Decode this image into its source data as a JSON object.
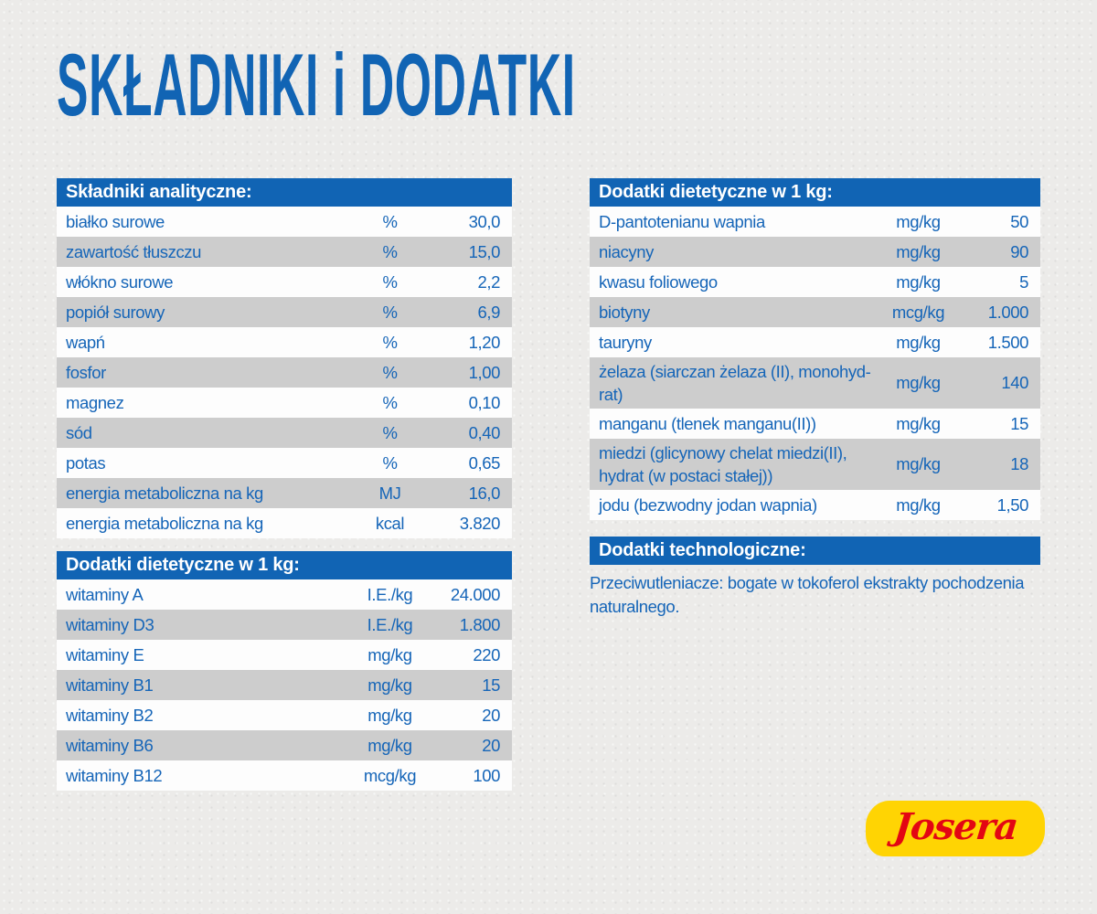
{
  "page": {
    "title": "SKŁADNIKI i DODATKI"
  },
  "colors": {
    "accent_blue": "#1164b4",
    "text_blue": "#1565b8",
    "row_light": "#fdfdfd",
    "row_gray": "#cdcdcd",
    "background": "#ecebe9",
    "header_text": "#ffffff",
    "logo_yellow": "#ffd403",
    "logo_red": "#e30613"
  },
  "tables": {
    "analytical": {
      "header": "Składniki analityczne:",
      "rows": [
        {
          "label": "białko surowe",
          "unit": "%",
          "value": "30,0"
        },
        {
          "label": "zawartość tłuszczu",
          "unit": "%",
          "value": "15,0"
        },
        {
          "label": "włókno surowe",
          "unit": "%",
          "value": "2,2"
        },
        {
          "label": "popiół surowy",
          "unit": "%",
          "value": "6,9"
        },
        {
          "label": "wapń",
          "unit": "%",
          "value": "1,20"
        },
        {
          "label": "fosfor",
          "unit": "%",
          "value": "1,00"
        },
        {
          "label": "magnez",
          "unit": "%",
          "value": "0,10"
        },
        {
          "label": "sód",
          "unit": "%",
          "value": "0,40"
        },
        {
          "label": "potas",
          "unit": "%",
          "value": "0,65"
        },
        {
          "label": "energia metaboliczna na kg",
          "unit": "MJ",
          "value": "16,0"
        },
        {
          "label": "energia metaboliczna na kg",
          "unit": "kcal",
          "value": "3.820"
        }
      ]
    },
    "dietary_left": {
      "header": "Dodatki dietetyczne w 1 kg:",
      "rows": [
        {
          "label": "witaminy A",
          "unit": "I.E./kg",
          "value": "24.000"
        },
        {
          "label": "witaminy D3",
          "unit": "I.E./kg",
          "value": "1.800"
        },
        {
          "label": "witaminy E",
          "unit": "mg/kg",
          "value": "220"
        },
        {
          "label": "witaminy B1",
          "unit": "mg/kg",
          "value": "15"
        },
        {
          "label": "witaminy B2",
          "unit": "mg/kg",
          "value": "20"
        },
        {
          "label": "witaminy B6",
          "unit": "mg/kg",
          "value": "20"
        },
        {
          "label": "witaminy B12",
          "unit": "mcg/kg",
          "value": "100"
        }
      ]
    },
    "dietary_right": {
      "header": "Dodatki dietetyczne w 1 kg:",
      "rows": [
        {
          "label": "D-pantotenianu wapnia",
          "unit": "mg/kg",
          "value": "50"
        },
        {
          "label": "niacyny",
          "unit": "mg/kg",
          "value": "90"
        },
        {
          "label": "kwasu foliowego",
          "unit": "mg/kg",
          "value": "5"
        },
        {
          "label": "biotyny",
          "unit": "mcg/kg",
          "value": "1.000"
        },
        {
          "label": "tauryny",
          "unit": "mg/kg",
          "value": "1.500"
        },
        {
          "label": "żelaza (siarczan żelaza (II), monohyd-\nrat)",
          "unit": "mg/kg",
          "value": "140"
        },
        {
          "label": "manganu (tlenek manganu(II))",
          "unit": "mg/kg",
          "value": "15"
        },
        {
          "label": "miedzi (glicynowy chelat miedzi(II),\nhydrat (w postaci stałej))",
          "unit": "mg/kg",
          "value": "18"
        },
        {
          "label": "jodu (bezwodny jodan wapnia)",
          "unit": "mg/kg",
          "value": "1,50"
        }
      ]
    },
    "technological": {
      "header": "Dodatki technologiczne:",
      "text": "Przeciwutleniacze: bogate w tokoferol ekstrakty pochodzenia naturalnego."
    }
  },
  "logo": {
    "brand": "Josera"
  }
}
